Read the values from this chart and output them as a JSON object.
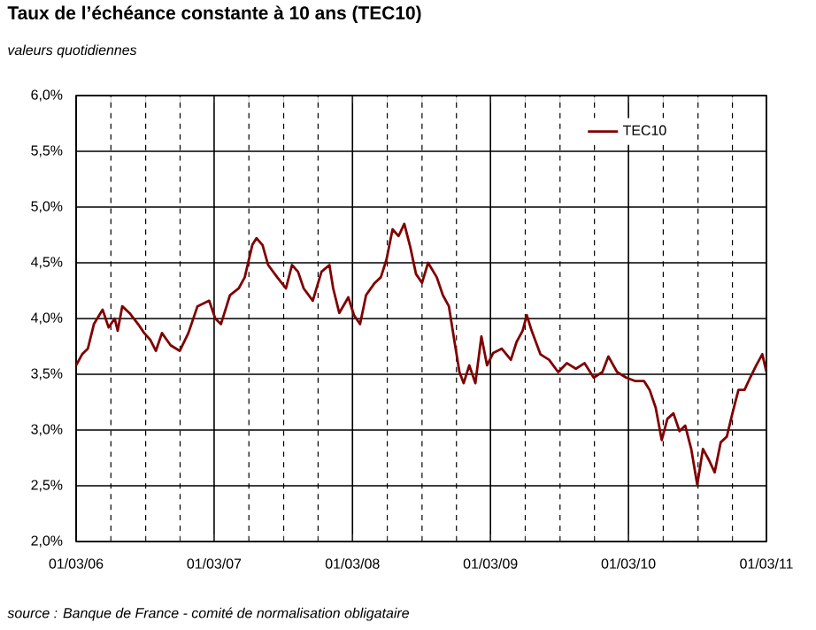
{
  "chart_data": {
    "type": "line",
    "title": "Taux de l’échéance constante à 10 ans (TEC10)",
    "subtitle": "valeurs quotidiennes",
    "annotations": [
      "source : Banque de France - comité de normalisation obligataire"
    ],
    "x": [
      "2006-03-01",
      "2006-03-17",
      "2006-04-01",
      "2006-04-17",
      "2006-05-10",
      "2006-05-26",
      "2006-06-11",
      "2006-06-19",
      "2006-07-01",
      "2006-07-20",
      "2006-08-12",
      "2006-08-28",
      "2006-09-13",
      "2006-09-28",
      "2006-10-14",
      "2006-11-06",
      "2006-11-30",
      "2006-12-23",
      "2007-01-16",
      "2007-02-16",
      "2007-03-04",
      "2007-03-19",
      "2007-04-12",
      "2007-05-05",
      "2007-05-21",
      "2007-06-10",
      "2007-06-21",
      "2007-07-07",
      "2007-07-22",
      "2007-08-15",
      "2007-09-07",
      "2007-09-23",
      "2007-10-09",
      "2007-10-24",
      "2007-11-17",
      "2007-12-10",
      "2007-12-31",
      "2008-01-10",
      "2008-01-26",
      "2008-02-19",
      "2008-03-05",
      "2008-03-21",
      "2008-04-06",
      "2008-04-29",
      "2008-05-15",
      "2008-05-30",
      "2008-06-15",
      "2008-07-01",
      "2008-07-16",
      "2008-08-01",
      "2008-08-16",
      "2008-09-01",
      "2008-09-17",
      "2008-10-10",
      "2008-10-26",
      "2008-11-11",
      "2008-11-26",
      "2008-12-09",
      "2008-12-20",
      "2009-01-04",
      "2009-01-20",
      "2009-02-05",
      "2009-02-20",
      "2009-03-08",
      "2009-03-31",
      "2009-04-24",
      "2009-05-09",
      "2009-05-25",
      "2009-06-05",
      "2009-06-18",
      "2009-07-11",
      "2009-08-03",
      "2009-08-27",
      "2009-09-19",
      "2009-10-13",
      "2009-11-05",
      "2009-11-29",
      "2009-12-22",
      "2010-01-07",
      "2010-01-30",
      "2010-02-23",
      "2010-03-18",
      "2010-04-11",
      "2010-04-26",
      "2010-05-12",
      "2010-05-28",
      "2010-06-12",
      "2010-06-28",
      "2010-07-14",
      "2010-07-29",
      "2010-08-14",
      "2010-08-30",
      "2010-09-14",
      "2010-09-30",
      "2010-10-15",
      "2010-10-31",
      "2010-11-16",
      "2010-12-01",
      "2010-12-17",
      "2011-01-02",
      "2011-01-17",
      "2011-02-02",
      "2011-02-18",
      "2011-03-01"
    ],
    "series": [
      {
        "name": "TEC10",
        "color": "#800000",
        "values": [
          3.58,
          3.68,
          3.73,
          3.95,
          4.08,
          3.92,
          4.0,
          3.89,
          4.11,
          4.05,
          3.95,
          3.87,
          3.81,
          3.71,
          3.87,
          3.76,
          3.71,
          3.87,
          4.11,
          4.16,
          4.0,
          3.95,
          4.21,
          4.27,
          4.37,
          4.66,
          4.72,
          4.66,
          4.48,
          4.37,
          4.27,
          4.48,
          4.42,
          4.27,
          4.16,
          4.42,
          4.48,
          4.27,
          4.05,
          4.19,
          4.03,
          3.95,
          4.21,
          4.32,
          4.37,
          4.53,
          4.8,
          4.74,
          4.85,
          4.64,
          4.4,
          4.32,
          4.5,
          4.37,
          4.21,
          4.11,
          3.79,
          3.52,
          3.42,
          3.58,
          3.42,
          3.84,
          3.58,
          3.69,
          3.73,
          3.63,
          3.79,
          3.89,
          4.03,
          3.89,
          3.68,
          3.63,
          3.52,
          3.6,
          3.55,
          3.6,
          3.47,
          3.52,
          3.66,
          3.52,
          3.47,
          3.44,
          3.44,
          3.36,
          3.2,
          2.91,
          3.1,
          3.15,
          2.99,
          3.04,
          2.83,
          2.51,
          2.83,
          2.73,
          2.62,
          2.89,
          2.94,
          3.15,
          3.36,
          3.36,
          3.47,
          3.58,
          3.68,
          3.52
        ]
      }
    ],
    "xlim": [
      "2006-03-01",
      "2011-03-01"
    ],
    "xticks": [
      {
        "value": "2006-03-01",
        "label": "01/03/06"
      },
      {
        "value": "2006-06-01",
        "label": null
      },
      {
        "value": "2006-09-01",
        "label": null
      },
      {
        "value": "2006-12-01",
        "label": null
      },
      {
        "value": "2007-03-01",
        "label": "01/03/07"
      },
      {
        "value": "2007-06-01",
        "label": null
      },
      {
        "value": "2007-09-01",
        "label": null
      },
      {
        "value": "2007-12-01",
        "label": null
      },
      {
        "value": "2008-03-01",
        "label": "01/03/08"
      },
      {
        "value": "2008-06-01",
        "label": null
      },
      {
        "value": "2008-09-01",
        "label": null
      },
      {
        "value": "2008-12-01",
        "label": null
      },
      {
        "value": "2009-03-01",
        "label": "01/03/09"
      },
      {
        "value": "2009-06-01",
        "label": null
      },
      {
        "value": "2009-09-01",
        "label": null
      },
      {
        "value": "2009-12-01",
        "label": null
      },
      {
        "value": "2010-03-01",
        "label": "01/03/10"
      },
      {
        "value": "2010-06-01",
        "label": null
      },
      {
        "value": "2010-09-01",
        "label": null
      },
      {
        "value": "2010-12-01",
        "label": null
      },
      {
        "value": "2011-03-01",
        "label": "01/03/11"
      }
    ],
    "ylim": [
      2,
      6
    ],
    "yticks": [
      {
        "value": 2,
        "label": "2,0%"
      },
      {
        "value": 2.5,
        "label": "2,5%"
      },
      {
        "value": 3,
        "label": "3,0%"
      },
      {
        "value": 3.5,
        "label": "3,5%"
      },
      {
        "value": 4,
        "label": "4,0%"
      },
      {
        "value": 4.5,
        "label": "4,5%"
      },
      {
        "value": 5,
        "label": "5,0%"
      },
      {
        "value": 5.5,
        "label": "5,5%"
      },
      {
        "value": 6,
        "label": "6,0%"
      }
    ],
    "grid": true,
    "legend": "top right"
  }
}
